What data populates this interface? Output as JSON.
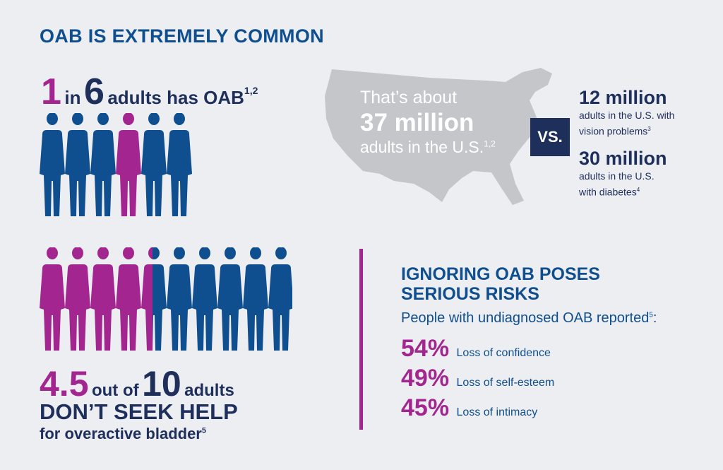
{
  "headline": "OAB IS EXTREMELY COMMON",
  "prevalence": {
    "num1": "1",
    "word_in": "in",
    "num2": "6",
    "rest": "adults has OAB",
    "sup": "1,2",
    "people_total": 6,
    "people_highlighted_index": 3
  },
  "map": {
    "line1": "That’s about",
    "line2": "37 million",
    "line3": "adults in the U.S.",
    "sup": "1,2",
    "map_color": "#c5c6c9"
  },
  "vs_label": "VS.",
  "comparisons": [
    {
      "number": "12 million",
      "desc_line1": "adults in the U.S. with",
      "desc_line2": "vision problems",
      "sup": "3"
    },
    {
      "number": "30 million",
      "desc_line1": "adults in the U.S.",
      "desc_line2": "with diabetes",
      "sup": "4"
    }
  ],
  "help": {
    "num1": "4.5",
    "out_of": "out of",
    "num2": "10",
    "adults": "adults",
    "line2": "DON’T SEEK HELP",
    "line3": "for overactive bladder",
    "sup": "5",
    "people_total": 10,
    "people_magenta": 4.5
  },
  "risks": {
    "title_line1": "IGNORING OAB POSES",
    "title_line2": "SERIOUS RISKS",
    "intro": "People with undiagnosed OAB reported",
    "intro_sup": "5",
    "items": [
      {
        "pct": "54%",
        "label": "Loss of confidence"
      },
      {
        "pct": "49%",
        "label": "Loss of self-esteem"
      },
      {
        "pct": "45%",
        "label": "Loss of intimacy"
      }
    ]
  },
  "colors": {
    "navy": "#1f2f5c",
    "blue": "#0f4f8f",
    "magenta": "#a3258f",
    "background": "#edeef1"
  }
}
